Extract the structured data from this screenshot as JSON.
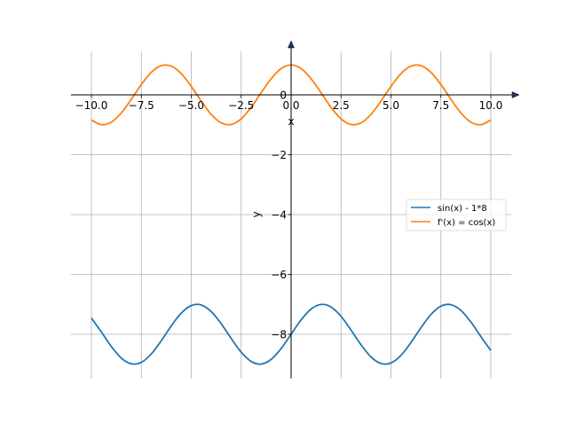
{
  "chart_data": {
    "type": "line",
    "title": "",
    "xlabel": "x",
    "ylabel": "y",
    "xlim": [
      -11,
      11
    ],
    "ylim": [
      -9.5,
      1.75
    ],
    "grid": true,
    "legend_position": "center-right",
    "x_ticks": [
      -10,
      -7.5,
      -5,
      -2.5,
      0,
      2.5,
      5,
      7.5,
      10
    ],
    "x_tick_labels": [
      "−10.0",
      "−7.5",
      "−5.0",
      "−2.5",
      "0.0",
      "2.5",
      "5.0",
      "7.5",
      "10.0"
    ],
    "y_ticks": [
      0,
      -2,
      -4,
      -6,
      -8
    ],
    "y_tick_labels": [
      "0",
      "−2",
      "−4",
      "−6",
      "−8"
    ],
    "x": [
      -10,
      -9.5,
      -9,
      -8.5,
      -8,
      -7.5,
      -7,
      -6.5,
      -6,
      -5.5,
      -5,
      -4.5,
      -4,
      -3.5,
      -3,
      -2.5,
      -2,
      -1.5,
      -1,
      -0.5,
      0,
      0.5,
      1,
      1.5,
      2,
      2.5,
      3,
      3.5,
      4,
      4.5,
      5,
      5.5,
      6,
      6.5,
      7,
      7.5,
      8,
      8.5,
      9,
      9.5,
      10
    ],
    "series": [
      {
        "name": "sin(x) - 1*8",
        "color": "#1f77b4",
        "values": [
          -7.456,
          -7.925,
          -8.412,
          -8.798,
          -8.989,
          -8.938,
          -8.657,
          -8.215,
          -7.721,
          -7.294,
          -7.041,
          -7.022,
          -7.243,
          -7.649,
          -8.141,
          -8.598,
          -8.909,
          -8.997,
          -8.841,
          -8.479,
          -8,
          -7.521,
          -7.159,
          -7.003,
          -7.091,
          -7.402,
          -7.859,
          -8.351,
          -8.757,
          -8.978,
          -8.959,
          -8.706,
          -8.279,
          -7.785,
          -7.343,
          -7.062,
          -7.011,
          -7.202,
          -7.588,
          -8.075,
          -8.544
        ]
      },
      {
        "name": "f'(x) = cos(x)",
        "color": "#ff7f0e",
        "values": [
          -0.839,
          -0.997,
          -0.911,
          -0.602,
          -0.146,
          0.347,
          0.754,
          0.977,
          0.96,
          0.709,
          0.284,
          -0.211,
          -0.654,
          -0.936,
          -0.99,
          -0.801,
          -0.416,
          0.071,
          0.54,
          0.878,
          1,
          0.878,
          0.54,
          0.071,
          -0.416,
          -0.801,
          -0.99,
          -0.936,
          -0.654,
          -0.211,
          0.284,
          0.709,
          0.96,
          0.977,
          0.754,
          0.347,
          -0.146,
          -0.602,
          -0.911,
          -0.997,
          -0.839
        ]
      }
    ]
  }
}
